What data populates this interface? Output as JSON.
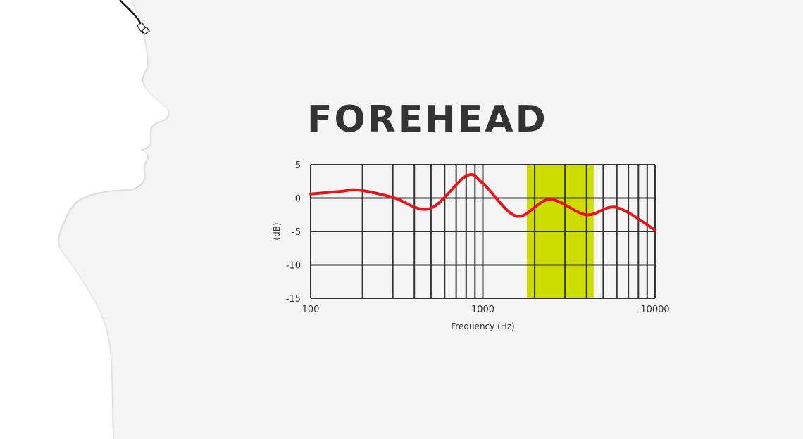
{
  "title": "FOREHEAD",
  "colors": {
    "background": "#f5f5f5",
    "silhouette": "#ffffff",
    "curve": "#e8141c",
    "highlight": "#cedd00",
    "grid": "#333333"
  },
  "icons": {
    "figure": "head-profile-silhouette-with-forehead-microphone"
  },
  "chart_data": {
    "type": "line",
    "title": "FOREHEAD",
    "xlabel": "Frequency  (Hz)",
    "ylabel": "(dB)",
    "xscale": "log",
    "xlim": [
      100,
      10000
    ],
    "ylim": [
      -15,
      5
    ],
    "x_ticks": [
      "100",
      "1000",
      "10000"
    ],
    "y_ticks": [
      "5",
      "0",
      "-5",
      "-10",
      "-15"
    ],
    "grid": true,
    "highlight_band": {
      "x_range": [
        1800,
        4400
      ]
    },
    "series": [
      {
        "x": [
          100,
          150,
          190,
          300,
          490,
          800,
          1000,
          1570,
          2440,
          3980,
          5960,
          10000
        ],
        "y": [
          0.6,
          1.0,
          1.2,
          0.1,
          -1.6,
          3.3,
          2.2,
          -2.7,
          -0.2,
          -2.5,
          -1.4,
          -4.8
        ]
      }
    ]
  }
}
